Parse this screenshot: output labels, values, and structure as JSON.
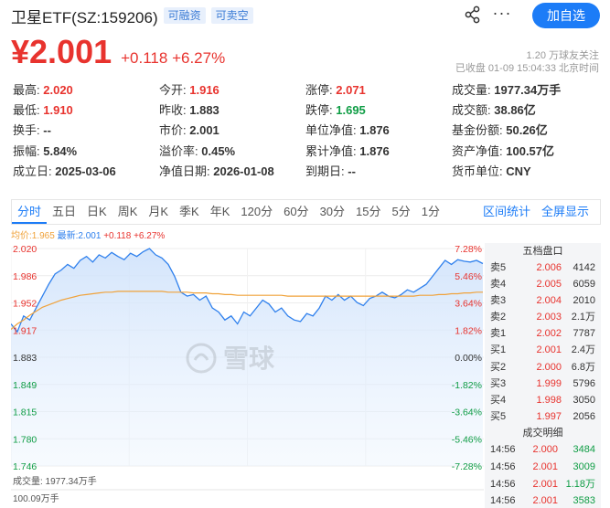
{
  "header": {
    "title": "卫星ETF(SZ:159206)",
    "tags": [
      "可融资",
      "可卖空"
    ],
    "add_button": "加自选"
  },
  "quote": {
    "price": "¥2.001",
    "change": "+0.118",
    "change_pct": "+6.27%",
    "followers": "1.20 万球友关注",
    "status": "已收盘 01-09 15:04:33 北京时间"
  },
  "stats": [
    [
      {
        "label": "最高:",
        "value": "2.020",
        "color": "up"
      },
      {
        "label": "今开:",
        "value": "1.916",
        "color": "up"
      },
      {
        "label": "涨停:",
        "value": "2.071",
        "color": "up"
      },
      {
        "label": "成交量:",
        "value": "1977.34万手",
        "color": ""
      }
    ],
    [
      {
        "label": "最低:",
        "value": "1.910",
        "color": "up"
      },
      {
        "label": "昨收:",
        "value": "1.883",
        "color": ""
      },
      {
        "label": "跌停:",
        "value": "1.695",
        "color": "down"
      },
      {
        "label": "成交额:",
        "value": "38.86亿",
        "color": ""
      }
    ],
    [
      {
        "label": "换手:",
        "value": "--",
        "color": ""
      },
      {
        "label": "市价:",
        "value": "2.001",
        "color": ""
      },
      {
        "label": "单位净值:",
        "value": "1.876",
        "color": ""
      },
      {
        "label": "基金份额:",
        "value": "50.26亿",
        "color": ""
      }
    ],
    [
      {
        "label": "振幅:",
        "value": "5.84%",
        "color": ""
      },
      {
        "label": "溢价率:",
        "value": "0.45%",
        "color": ""
      },
      {
        "label": "累计净值:",
        "value": "1.876",
        "color": ""
      },
      {
        "label": "资产净值:",
        "value": "100.57亿",
        "color": ""
      }
    ],
    [
      {
        "label": "成立日:",
        "value": "2025-03-06",
        "color": ""
      },
      {
        "label": "净值日期:",
        "value": "2026-01-08",
        "color": ""
      },
      {
        "label": "到期日:",
        "value": "--",
        "color": ""
      },
      {
        "label": "货币单位:",
        "value": "CNY",
        "color": ""
      }
    ]
  ],
  "tabs": [
    "分时",
    "五日",
    "日K",
    "周K",
    "月K",
    "季K",
    "年K",
    "120分",
    "60分",
    "30分",
    "15分",
    "5分",
    "1分"
  ],
  "tabs_active": "分时",
  "tabs_right": [
    "区间统计",
    "全屏显示"
  ],
  "chart_info": {
    "avg": "均价:1.965",
    "last": "最新:2.001",
    "change": "+0.118 +6.27%"
  },
  "watermark": "雪球",
  "volume_label": "成交量: 1977.34万手",
  "volume_tick": "100.09万手",
  "side": {
    "orderbook_title": "五档盘口",
    "orderbook": [
      {
        "label": "卖5",
        "price": "2.006",
        "vol": "4142"
      },
      {
        "label": "卖4",
        "price": "2.005",
        "vol": "6059"
      },
      {
        "label": "卖3",
        "price": "2.004",
        "vol": "2010"
      },
      {
        "label": "卖2",
        "price": "2.003",
        "vol": "2.1万"
      },
      {
        "label": "卖1",
        "price": "2.002",
        "vol": "7787"
      },
      {
        "label": "买1",
        "price": "2.001",
        "vol": "2.4万"
      },
      {
        "label": "买2",
        "price": "2.000",
        "vol": "6.8万"
      },
      {
        "label": "买3",
        "price": "1.999",
        "vol": "5796"
      },
      {
        "label": "买4",
        "price": "1.998",
        "vol": "3050"
      },
      {
        "label": "买5",
        "price": "1.997",
        "vol": "2056"
      }
    ],
    "trades_title": "成交明细",
    "trades": [
      {
        "time": "14:56",
        "price": "2.000",
        "vol": "3484"
      },
      {
        "time": "14:56",
        "price": "2.001",
        "vol": "3009"
      },
      {
        "time": "14:56",
        "price": "2.001",
        "vol": "1.18万"
      },
      {
        "time": "14:56",
        "price": "2.001",
        "vol": "3583"
      }
    ]
  },
  "chart_data": {
    "type": "line",
    "y_left_ticks": [
      "2.020",
      "1.986",
      "1.952",
      "1.917",
      "1.883",
      "1.849",
      "1.815",
      "1.780",
      "1.746"
    ],
    "y_right_ticks": [
      "7.28%",
      "5.46%",
      "3.64%",
      "1.82%",
      "0.00%",
      "-1.82%",
      "-3.64%",
      "-5.46%",
      "-7.28%"
    ],
    "ylim": [
      1.746,
      2.02
    ],
    "base": 1.883,
    "series": [
      {
        "values": [
          1.925,
          1.915,
          1.935,
          1.93,
          1.945,
          1.96,
          1.975,
          1.988,
          1.993,
          2.0,
          1.995,
          2.005,
          2.01,
          2.003,
          2.012,
          2.008,
          2.015,
          2.01,
          2.006,
          2.014,
          2.01,
          2.016,
          2.02,
          2.012,
          2.008,
          2.0,
          1.985,
          1.965,
          1.96,
          1.962,
          1.955,
          1.96,
          1.945,
          1.94,
          1.93,
          1.935,
          1.925,
          1.94,
          1.935,
          1.945,
          1.955,
          1.95,
          1.94,
          1.945,
          1.935,
          1.93,
          1.928,
          1.938,
          1.935,
          1.945,
          1.96,
          1.955,
          1.962,
          1.955,
          1.96,
          1.952,
          1.948,
          1.957,
          1.96,
          1.965,
          1.96,
          1.958,
          1.962,
          1.968,
          1.965,
          1.97,
          1.975,
          1.985,
          1.995,
          2.005,
          2.0,
          2.006,
          2.004,
          2.003,
          2.005,
          2.001
        ]
      },
      {
        "values": [
          1.918,
          1.925,
          1.93,
          1.936,
          1.941,
          1.946,
          1.949,
          1.952,
          1.955,
          1.957,
          1.959,
          1.961,
          1.962,
          1.963,
          1.964,
          1.965,
          1.965,
          1.966,
          1.966,
          1.966,
          1.966,
          1.966,
          1.966,
          1.966,
          1.966,
          1.965,
          1.965,
          1.965,
          1.965,
          1.964,
          1.964,
          1.964,
          1.963,
          1.963,
          1.962,
          1.962,
          1.961,
          1.961,
          1.961,
          1.961,
          1.961,
          1.961,
          1.961,
          1.961,
          1.96,
          1.96,
          1.96,
          1.96,
          1.96,
          1.96,
          1.96,
          1.96,
          1.96,
          1.96,
          1.96,
          1.96,
          1.96,
          1.96,
          1.96,
          1.96,
          1.96,
          1.96,
          1.96,
          1.96,
          1.96,
          1.961,
          1.961,
          1.961,
          1.962,
          1.962,
          1.963,
          1.963,
          1.964,
          1.964,
          1.965,
          1.965
        ]
      }
    ]
  }
}
